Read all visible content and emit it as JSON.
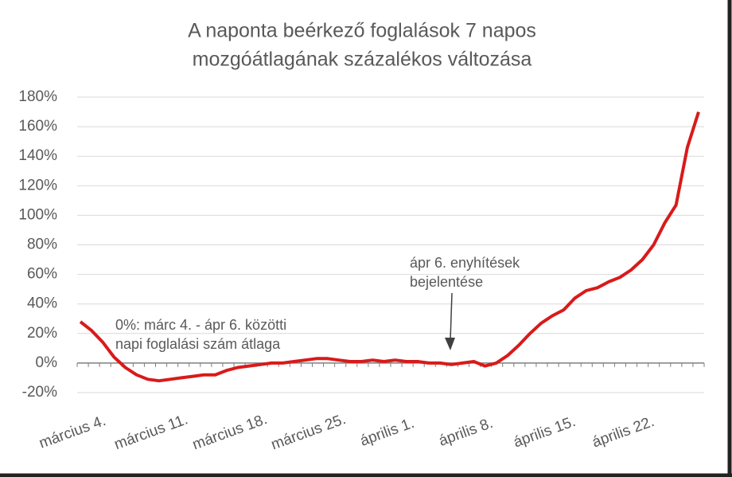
{
  "chart_data": {
    "type": "line",
    "title": [
      "A naponta beérkező foglalások 7 napos",
      "mozgóátlagának százalékos változása"
    ],
    "categories": [
      "március 4.",
      null,
      null,
      null,
      null,
      null,
      null,
      "március 11.",
      null,
      null,
      null,
      null,
      null,
      null,
      "március 18.",
      null,
      null,
      null,
      null,
      null,
      null,
      "március 25.",
      null,
      null,
      null,
      null,
      null,
      null,
      "április 1.",
      null,
      null,
      null,
      null,
      null,
      null,
      "április 8.",
      null,
      null,
      null,
      null,
      null,
      null,
      "április 15.",
      null,
      null,
      null,
      null,
      null,
      null,
      "április 22.",
      null,
      null,
      null,
      null,
      null,
      null
    ],
    "series": [
      {
        "name": "változás",
        "color": "#d91a1a",
        "values": [
          28,
          22,
          14,
          4,
          -3,
          -8,
          -11,
          -12,
          -11,
          -10,
          -9,
          -8,
          -8,
          -5,
          -3,
          -2,
          -1,
          0,
          0,
          1,
          2,
          3,
          3,
          2,
          1,
          1,
          2,
          1,
          2,
          1,
          1,
          0,
          0,
          -1,
          0,
          1,
          -2,
          0,
          5,
          12,
          20,
          27,
          32,
          36,
          44,
          49,
          51,
          55,
          58,
          63,
          70,
          80,
          95,
          107,
          146,
          170
        ]
      }
    ],
    "ylim": [
      -20,
      180
    ],
    "yticks": [
      {
        "value": -20,
        "label": "-20%"
      },
      {
        "value": 0,
        "label": "0%"
      },
      {
        "value": 20,
        "label": "20%"
      },
      {
        "value": 40,
        "label": "40%"
      },
      {
        "value": 60,
        "label": "60%"
      },
      {
        "value": 80,
        "label": "80%"
      },
      {
        "value": 100,
        "label": "100%"
      },
      {
        "value": 120,
        "label": "120%"
      },
      {
        "value": 140,
        "label": "140%"
      },
      {
        "value": 160,
        "label": "160%"
      },
      {
        "value": 180,
        "label": "180%"
      }
    ],
    "grid": true,
    "annotations": [
      {
        "text": [
          "0%: márc 4. - ápr 6. közötti",
          "napi foglalási szám átlaga"
        ]
      },
      {
        "text": [
          "ápr 6. enyhítések",
          "bejelentése"
        ]
      }
    ]
  }
}
